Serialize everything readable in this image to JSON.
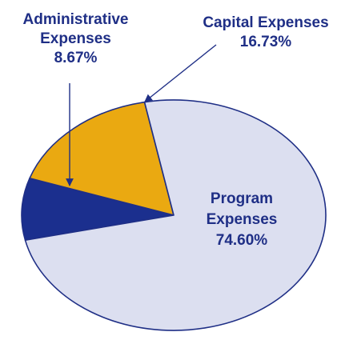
{
  "chart_data": {
    "type": "pie",
    "slices": [
      {
        "label_lines": [
          "Administrative",
          "Expenses"
        ],
        "value_text": "8.67%",
        "value": 8.67,
        "color": "#1b2f8e"
      },
      {
        "label_lines": [
          "Capital Expenses"
        ],
        "value_text": "16.73%",
        "value": 16.73,
        "color": "#eaa911"
      },
      {
        "label_lines": [
          "Program",
          "Expenses"
        ],
        "value_text": "74.60%",
        "value": 74.6,
        "color": "#dcdff0"
      }
    ],
    "label_color": "#1f2f86",
    "outline_color": "#1f2f86",
    "legend": "none"
  }
}
